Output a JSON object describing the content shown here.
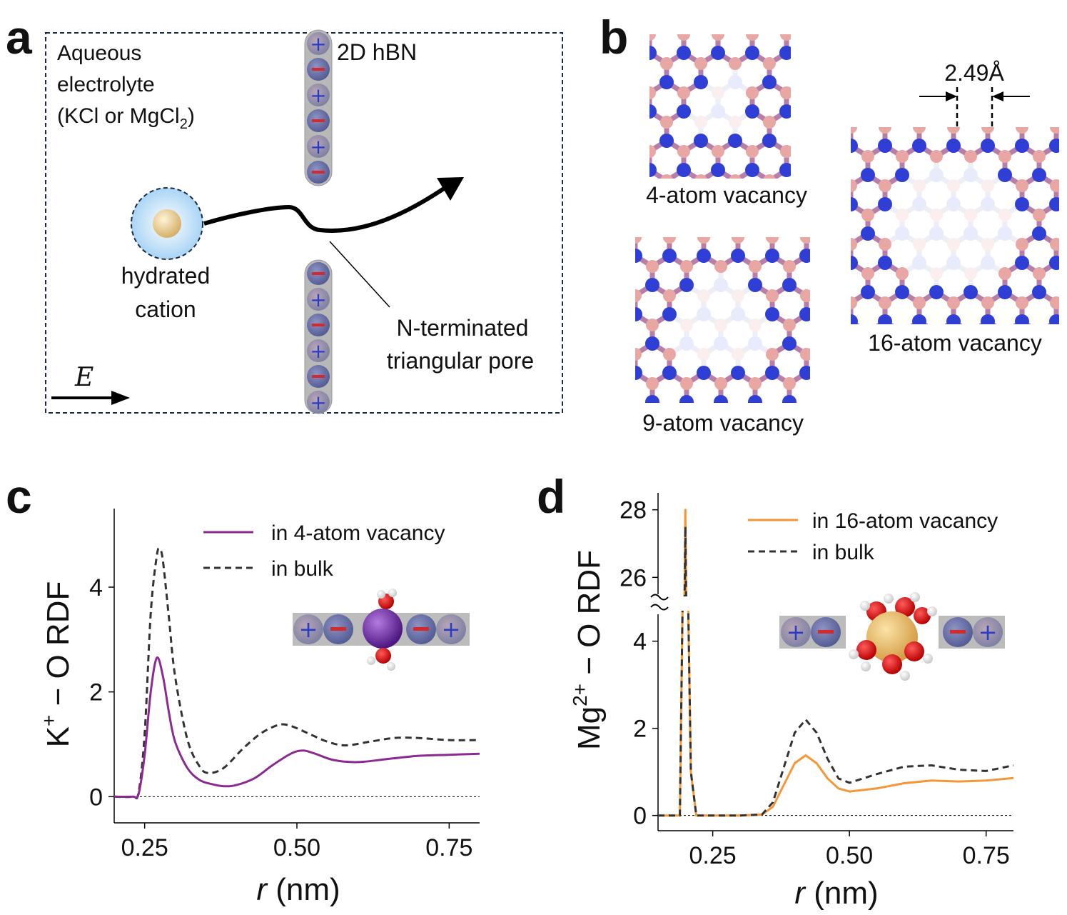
{
  "panel_a": {
    "letter": "a",
    "electrolyte_lines": [
      "Aqueous",
      "electrolyte",
      "(KCl or MgCl"
    ],
    "electrolyte_sub": "2",
    "electrolyte_close": ")",
    "membrane_label": "2D hBN",
    "cation_lines": [
      "hydrated",
      "cation"
    ],
    "pore_lines": [
      "N-terminated",
      "triangular pore"
    ],
    "field_label": "E",
    "top_charges": [
      "+",
      "−",
      "+",
      "−",
      "+",
      "−"
    ],
    "bottom_charges": [
      "−",
      "+",
      "−",
      "+",
      "−",
      "+"
    ]
  },
  "panel_b": {
    "letter": "b",
    "vacancies": [
      "4-atom vacancy",
      "9-atom vacancy",
      "16-atom vacancy"
    ],
    "spacing_label": "2.49Å"
  },
  "panel_c": {
    "letter": "c",
    "legend": [
      "in 4-atom vacancy",
      "in bulk"
    ],
    "ylabel_main": "K",
    "ylabel_sup": "+",
    "ylabel_rest": " − O RDF",
    "xlabel_italic": "r",
    "xlabel_rest": " (nm)",
    "xticks": [
      "0.25",
      "0.50",
      "0.75"
    ],
    "yticks": [
      "0",
      "2",
      "4"
    ]
  },
  "panel_d": {
    "letter": "d",
    "legend": [
      "in 16-atom vacancy",
      "in bulk"
    ],
    "ylabel_main": "Mg",
    "ylabel_sup": "2+",
    "ylabel_rest": " − O RDF",
    "xlabel_italic": "r",
    "xlabel_rest": " (nm)",
    "xticks": [
      "0.25",
      "0.50",
      "0.75"
    ],
    "yticks_lower": [
      "0",
      "2",
      "4"
    ],
    "yticks_upper": [
      "26",
      "28"
    ]
  },
  "colors": {
    "purple": "#8b2a91",
    "orange": "#f59638",
    "bulk": "#333333",
    "nitrogen": "#2f3fd6",
    "boron": "#e8a7a2",
    "charge_bg": "#8a8fa6"
  },
  "chart_data": [
    {
      "type": "line",
      "title": "",
      "xlabel": "r (nm)",
      "ylabel": "K+ − O RDF",
      "xlim": [
        0.2,
        0.8
      ],
      "ylim": [
        -0.5,
        5.5
      ],
      "series": [
        {
          "name": "in 4-atom vacancy",
          "x": [
            0.2,
            0.23,
            0.24,
            0.25,
            0.26,
            0.27,
            0.28,
            0.29,
            0.3,
            0.32,
            0.34,
            0.36,
            0.38,
            0.4,
            0.43,
            0.46,
            0.49,
            0.51,
            0.53,
            0.56,
            0.6,
            0.65,
            0.7,
            0.75,
            0.8
          ],
          "y": [
            0,
            0,
            0.05,
            0.8,
            2.0,
            2.65,
            2.3,
            1.6,
            1.05,
            0.55,
            0.32,
            0.24,
            0.2,
            0.22,
            0.35,
            0.6,
            0.82,
            0.88,
            0.82,
            0.7,
            0.66,
            0.72,
            0.78,
            0.8,
            0.82
          ]
        },
        {
          "name": "in bulk",
          "x": [
            0.2,
            0.23,
            0.24,
            0.25,
            0.26,
            0.27,
            0.275,
            0.28,
            0.29,
            0.3,
            0.32,
            0.34,
            0.355,
            0.38,
            0.41,
            0.44,
            0.47,
            0.49,
            0.52,
            0.55,
            0.58,
            0.62,
            0.66,
            0.7,
            0.75,
            0.8
          ],
          "y": [
            0,
            0,
            0.08,
            1.2,
            3.5,
            4.6,
            4.72,
            4.5,
            3.4,
            2.3,
            1.1,
            0.58,
            0.45,
            0.55,
            0.9,
            1.2,
            1.37,
            1.35,
            1.2,
            1.05,
            0.98,
            1.05,
            1.12,
            1.12,
            1.08,
            1.08
          ]
        }
      ]
    },
    {
      "type": "line",
      "title": "",
      "xlabel": "r (nm)",
      "ylabel": "Mg2+ − O RDF",
      "xlim": [
        0.15,
        0.8
      ],
      "ylim": [
        -0.5,
        28.5
      ],
      "axis_break": [
        4.6,
        25.5
      ],
      "series": [
        {
          "name": "in 16-atom vacancy",
          "x": [
            0.15,
            0.19,
            0.195,
            0.2,
            0.205,
            0.21,
            0.22,
            0.3,
            0.34,
            0.36,
            0.38,
            0.4,
            0.42,
            0.44,
            0.46,
            0.48,
            0.5,
            0.55,
            0.6,
            0.65,
            0.7,
            0.75,
            0.8
          ],
          "y": [
            0,
            0,
            5,
            28,
            5,
            1,
            0,
            0,
            0.02,
            0.2,
            0.7,
            1.2,
            1.38,
            1.2,
            0.85,
            0.62,
            0.55,
            0.62,
            0.74,
            0.8,
            0.78,
            0.8,
            0.86
          ]
        },
        {
          "name": "in bulk",
          "x": [
            0.15,
            0.19,
            0.195,
            0.2,
            0.205,
            0.21,
            0.22,
            0.3,
            0.34,
            0.36,
            0.38,
            0.4,
            0.42,
            0.44,
            0.46,
            0.48,
            0.5,
            0.55,
            0.6,
            0.65,
            0.7,
            0.75,
            0.8
          ],
          "y": [
            0,
            0,
            5,
            27.5,
            5,
            1,
            0,
            0,
            0.02,
            0.3,
            1.1,
            1.9,
            2.2,
            1.9,
            1.3,
            0.85,
            0.75,
            0.95,
            1.12,
            1.15,
            1.05,
            1.02,
            1.15
          ]
        }
      ]
    }
  ]
}
